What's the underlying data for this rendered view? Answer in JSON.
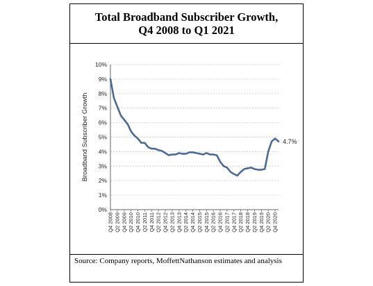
{
  "title_line1": "Total Broadband Subscriber Growth,",
  "title_line2": "Q4 2008 to Q1 2021",
  "source": "Source: Company reports, MoffettNathanson estimates and analysis",
  "chart_data": {
    "type": "line",
    "title": "Total Broadband Subscriber Growth, Q4 2008 to Q1 2021",
    "ylabel": "Broadband Subscriber Growth",
    "xlabel": "",
    "ylim": [
      0,
      10
    ],
    "yticks": [
      "0%",
      "1%",
      "2%",
      "3%",
      "4%",
      "5%",
      "6%",
      "7%",
      "8%",
      "9%",
      "10%"
    ],
    "grid": true,
    "line_color": "#4a6a9a",
    "x_tick_labels": [
      "Q4 2008",
      "Q2 2009",
      "Q4 2009",
      "Q2 2010",
      "Q4 2010",
      "Q2 2011",
      "Q4 2011",
      "Q2 2012",
      "Q4 2012",
      "Q2 2013",
      "Q4 2013",
      "Q2 2014",
      "Q4 2014",
      "Q2 2015",
      "Q4 2015",
      "Q2 2016",
      "Q4 2016",
      "Q2 2017",
      "Q4 2017",
      "Q2 2018",
      "Q4 2018",
      "Q2 2019",
      "Q4 2019",
      "Q2 2020",
      "Q4 2020"
    ],
    "x": [
      "Q4 2008",
      "Q1 2009",
      "Q2 2009",
      "Q3 2009",
      "Q4 2009",
      "Q1 2010",
      "Q2 2010",
      "Q3 2010",
      "Q4 2010",
      "Q1 2011",
      "Q2 2011",
      "Q3 2011",
      "Q4 2011",
      "Q1 2012",
      "Q2 2012",
      "Q3 2012",
      "Q4 2012",
      "Q1 2013",
      "Q2 2013",
      "Q3 2013",
      "Q4 2013",
      "Q1 2014",
      "Q2 2014",
      "Q3 2014",
      "Q4 2014",
      "Q1 2015",
      "Q2 2015",
      "Q3 2015",
      "Q4 2015",
      "Q1 2016",
      "Q2 2016",
      "Q3 2016",
      "Q4 2016",
      "Q1 2017",
      "Q2 2017",
      "Q3 2017",
      "Q4 2017",
      "Q1 2018",
      "Q2 2018",
      "Q3 2018",
      "Q4 2018",
      "Q1 2019",
      "Q2 2019",
      "Q3 2019",
      "Q4 2019",
      "Q1 2020",
      "Q2 2020",
      "Q3 2020",
      "Q4 2020",
      "Q1 2021"
    ],
    "series": [
      {
        "values": [
          9.0,
          7.7,
          7.1,
          6.5,
          6.2,
          5.9,
          5.4,
          5.1,
          4.9,
          4.6,
          4.6,
          4.3,
          4.2,
          4.2,
          4.1,
          4.05,
          3.9,
          3.75,
          3.8,
          3.8,
          3.9,
          3.85,
          3.85,
          3.95,
          3.95,
          3.9,
          3.85,
          3.8,
          3.9,
          3.8,
          3.8,
          3.75,
          3.3,
          3.0,
          2.9,
          2.6,
          2.45,
          2.35,
          2.6,
          2.8,
          2.85,
          2.9,
          2.8,
          2.75,
          2.75,
          2.8,
          4.0,
          4.7,
          4.9,
          4.7
        ]
      }
    ],
    "annotations": [
      {
        "x": "Q1 2021",
        "text": "4.7%"
      }
    ]
  }
}
